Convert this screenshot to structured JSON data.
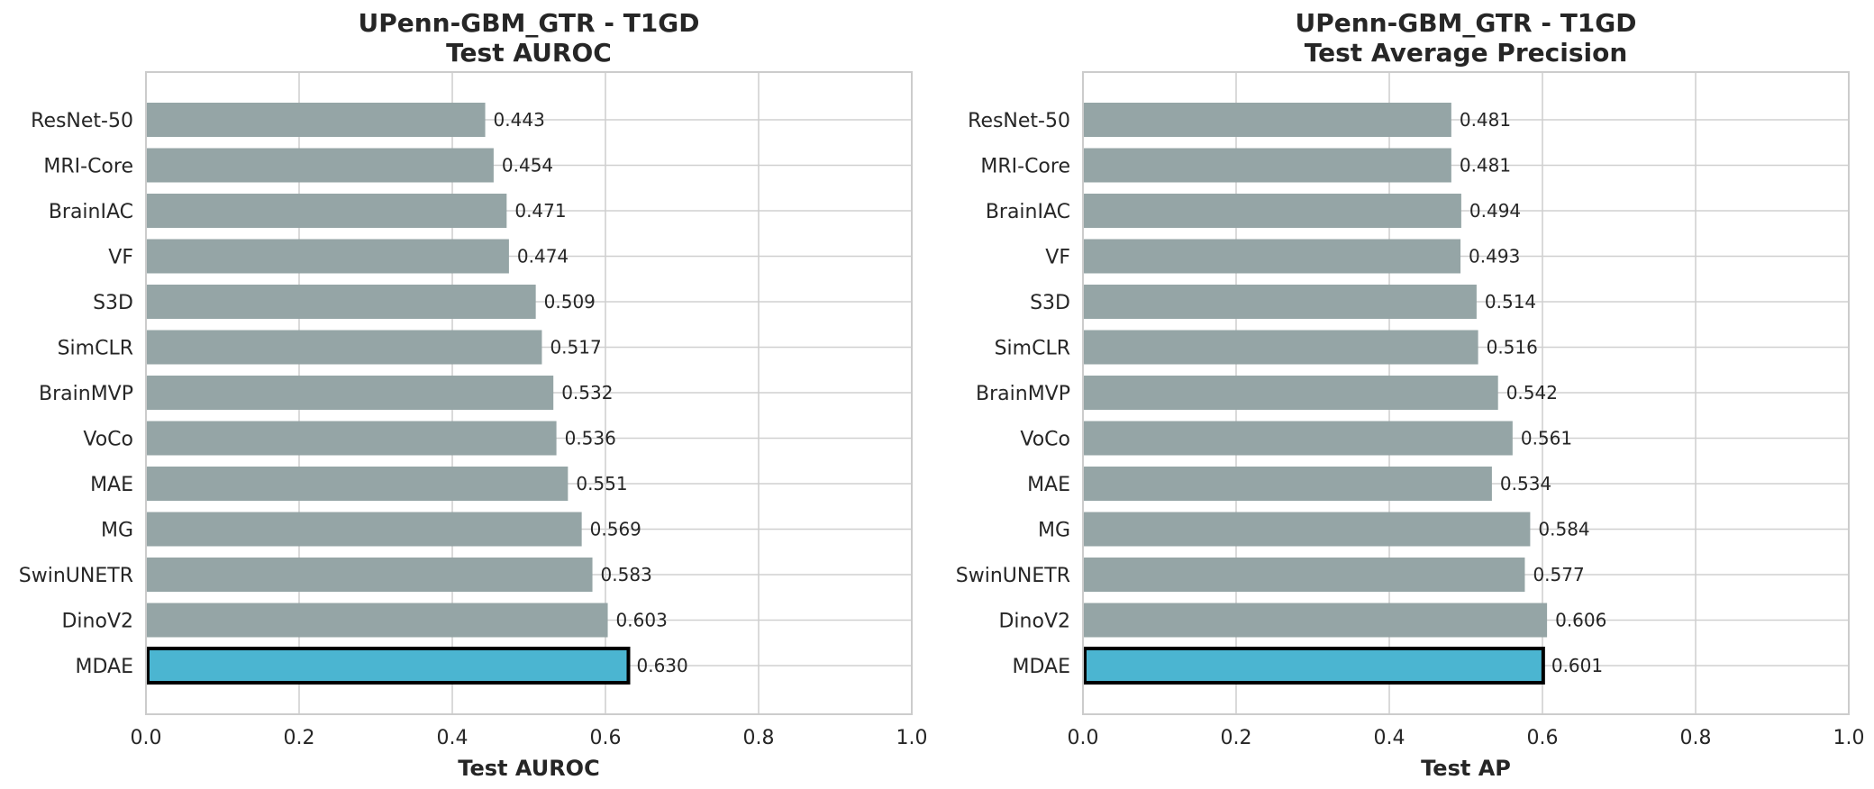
{
  "chart_data": [
    {
      "type": "bar",
      "orientation": "horizontal",
      "title": "UPenn-GBM_GTR - T1GD\nTest AUROC",
      "xlabel": "Test AUROC",
      "ylabel": "",
      "xlim": [
        0,
        1.0
      ],
      "xticks": [
        "0.0",
        "0.2",
        "0.4",
        "0.6",
        "0.8",
        "1.0"
      ],
      "grid": true,
      "categories": [
        "ResNet-50",
        "MRI-Core",
        "BrainIAC",
        "VF",
        "S3D",
        "SimCLR",
        "BrainMVP",
        "VoCo",
        "MAE",
        "MG",
        "SwinUNETR",
        "DinoV2",
        "MDAE"
      ],
      "values": [
        0.443,
        0.454,
        0.471,
        0.474,
        0.509,
        0.517,
        0.532,
        0.536,
        0.551,
        0.569,
        0.583,
        0.603,
        0.63
      ],
      "value_labels": [
        "0.443",
        "0.454",
        "0.471",
        "0.474",
        "0.509",
        "0.517",
        "0.532",
        "0.536",
        "0.551",
        "0.569",
        "0.583",
        "0.603",
        "0.630"
      ],
      "highlight": "MDAE",
      "colors": {
        "default": "#95a5a6",
        "highlight": "#4bb5d1",
        "highlight_border": "#000000"
      }
    },
    {
      "type": "bar",
      "orientation": "horizontal",
      "title": "UPenn-GBM_GTR - T1GD\nTest Average Precision",
      "xlabel": "Test AP",
      "ylabel": "",
      "xlim": [
        0,
        1.0
      ],
      "xticks": [
        "0.0",
        "0.2",
        "0.4",
        "0.6",
        "0.8",
        "1.0"
      ],
      "grid": true,
      "categories": [
        "ResNet-50",
        "MRI-Core",
        "BrainIAC",
        "VF",
        "S3D",
        "SimCLR",
        "BrainMVP",
        "VoCo",
        "MAE",
        "MG",
        "SwinUNETR",
        "DinoV2",
        "MDAE"
      ],
      "values": [
        0.481,
        0.481,
        0.494,
        0.493,
        0.514,
        0.516,
        0.542,
        0.561,
        0.534,
        0.584,
        0.577,
        0.606,
        0.601
      ],
      "value_labels": [
        "0.481",
        "0.481",
        "0.494",
        "0.493",
        "0.514",
        "0.516",
        "0.542",
        "0.561",
        "0.534",
        "0.584",
        "0.577",
        "0.606",
        "0.601"
      ],
      "highlight": "MDAE",
      "colors": {
        "default": "#95a5a6",
        "highlight": "#4bb5d1",
        "highlight_border": "#000000"
      }
    }
  ]
}
